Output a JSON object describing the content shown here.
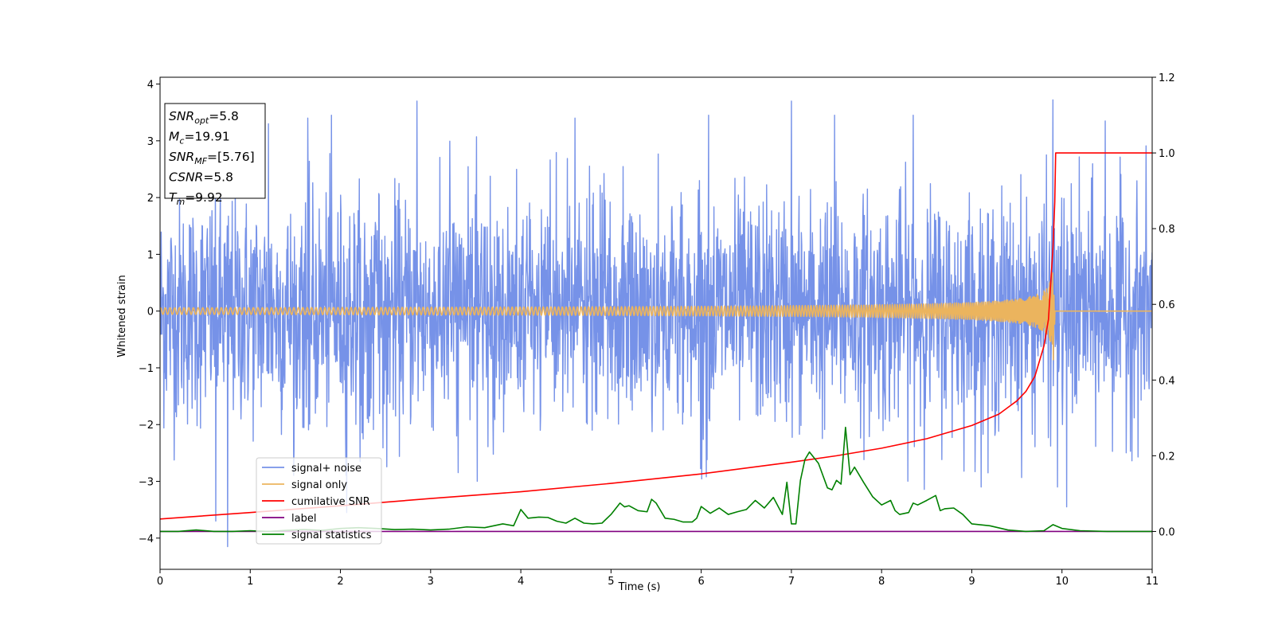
{
  "chart_data": {
    "type": "line",
    "xlabel": "Time (s)",
    "ylabel": "Whitened strain",
    "xlim": [
      0,
      11
    ],
    "ylim": [
      -4.55,
      4.12
    ],
    "ylim_right": [
      -0.1,
      1.2
    ],
    "x_ticks": [
      "0",
      "1",
      "2",
      "3",
      "4",
      "5",
      "6",
      "7",
      "8",
      "9",
      "10",
      "11"
    ],
    "y_ticks": [
      "−4",
      "−3",
      "−2",
      "−1",
      "0",
      "1",
      "2",
      "3",
      "4"
    ],
    "y_ticks_right": [
      "0.0",
      "0.2",
      "0.4",
      "0.6",
      "0.8",
      "1.0",
      "1.2"
    ],
    "grid": false,
    "legend_position": "lower-left",
    "info_box": [
      {
        "base": "SNR",
        "sub": "opt",
        "rest": "=5.8"
      },
      {
        "base": "M",
        "sub": "c",
        "rest": "=19.91"
      },
      {
        "base": "SNR",
        "sub": "MF",
        "rest": "=[5.76]"
      },
      {
        "base": "CSNR",
        "sub": "",
        "rest": "=5.8"
      },
      {
        "base": "T",
        "sub": "m",
        "rest": "=9.92"
      }
    ],
    "series": [
      {
        "name": "signal+ noise",
        "color": "#7692e8",
        "axis": "left",
        "kind": "noise",
        "envelope_typical": 2.2,
        "spikes": [
          [
            0.75,
            -4.15
          ],
          [
            0.62,
            -3.7
          ],
          [
            1.2,
            3.3
          ],
          [
            1.64,
            3.4
          ],
          [
            1.9,
            3.45
          ],
          [
            2.85,
            3.7
          ],
          [
            2.07,
            -3.55
          ],
          [
            4.6,
            3.4
          ],
          [
            6.08,
            3.45
          ],
          [
            7.0,
            3.7
          ],
          [
            7.48,
            3.45
          ],
          [
            8.35,
            3.45
          ],
          [
            9.9,
            3.72
          ],
          [
            10.05,
            -3.45
          ],
          [
            10.48,
            3.35
          ],
          [
            9.95,
            -3.1
          ]
        ]
      },
      {
        "name": "signal only",
        "color": "#ebb45e",
        "axis": "left",
        "kind": "chirp",
        "end_time": 9.92,
        "peak_amplitude": 1.1
      },
      {
        "name": "cumilative SNR",
        "color": "#ff0000",
        "axis": "right",
        "x": [
          0,
          1,
          2,
          3,
          4,
          5,
          6,
          7,
          7.5,
          8,
          8.5,
          9,
          9.3,
          9.5,
          9.6,
          9.7,
          9.8,
          9.85,
          9.9,
          9.92,
          9.93,
          11
        ],
        "y": [
          0.033,
          0.05,
          0.068,
          0.087,
          0.105,
          0.127,
          0.152,
          0.183,
          0.2,
          0.22,
          0.245,
          0.28,
          0.31,
          0.345,
          0.37,
          0.41,
          0.49,
          0.56,
          0.75,
          0.87,
          1.0,
          1.0
        ]
      },
      {
        "name": "label",
        "color": "#800080",
        "axis": "right",
        "x": [
          0,
          11
        ],
        "y": [
          0,
          0
        ]
      },
      {
        "name": "signal statistics",
        "color": "#008000",
        "axis": "right",
        "x": [
          0,
          0.2,
          0.4,
          0.6,
          0.8,
          1.0,
          1.2,
          1.4,
          1.6,
          1.8,
          2.0,
          2.2,
          2.4,
          2.6,
          2.8,
          3.0,
          3.2,
          3.4,
          3.6,
          3.8,
          3.92,
          4.0,
          4.08,
          4.2,
          4.3,
          4.4,
          4.5,
          4.6,
          4.7,
          4.8,
          4.9,
          5.0,
          5.1,
          5.15,
          5.2,
          5.3,
          5.4,
          5.45,
          5.5,
          5.6,
          5.7,
          5.8,
          5.9,
          5.95,
          6.0,
          6.1,
          6.2,
          6.3,
          6.4,
          6.5,
          6.6,
          6.7,
          6.8,
          6.9,
          6.95,
          7.0,
          7.05,
          7.1,
          7.15,
          7.2,
          7.3,
          7.4,
          7.45,
          7.5,
          7.55,
          7.6,
          7.65,
          7.7,
          7.8,
          7.9,
          8.0,
          8.1,
          8.15,
          8.2,
          8.3,
          8.35,
          8.4,
          8.5,
          8.6,
          8.65,
          8.7,
          8.8,
          8.9,
          9.0,
          9.2,
          9.4,
          9.6,
          9.8,
          9.9,
          10.0,
          10.2,
          10.5,
          11.0
        ],
        "y": [
          0.0,
          0.0,
          0.004,
          0.0,
          0.0,
          0.002,
          0.0,
          0.003,
          0.005,
          0.003,
          0.008,
          0.01,
          0.008,
          0.005,
          0.006,
          0.004,
          0.006,
          0.012,
          0.01,
          0.02,
          0.015,
          0.058,
          0.035,
          0.038,
          0.037,
          0.027,
          0.022,
          0.035,
          0.022,
          0.02,
          0.022,
          0.045,
          0.075,
          0.065,
          0.068,
          0.055,
          0.052,
          0.085,
          0.075,
          0.035,
          0.032,
          0.025,
          0.025,
          0.035,
          0.066,
          0.048,
          0.062,
          0.045,
          0.052,
          0.058,
          0.082,
          0.062,
          0.09,
          0.045,
          0.13,
          0.02,
          0.02,
          0.135,
          0.19,
          0.21,
          0.18,
          0.115,
          0.11,
          0.135,
          0.125,
          0.275,
          0.15,
          0.17,
          0.13,
          0.092,
          0.07,
          0.082,
          0.055,
          0.045,
          0.05,
          0.075,
          0.07,
          0.082,
          0.095,
          0.055,
          0.06,
          0.062,
          0.045,
          0.02,
          0.015,
          0.004,
          0.0,
          0.002,
          0.018,
          0.008,
          0.002,
          0.0,
          0.0
        ]
      }
    ]
  }
}
